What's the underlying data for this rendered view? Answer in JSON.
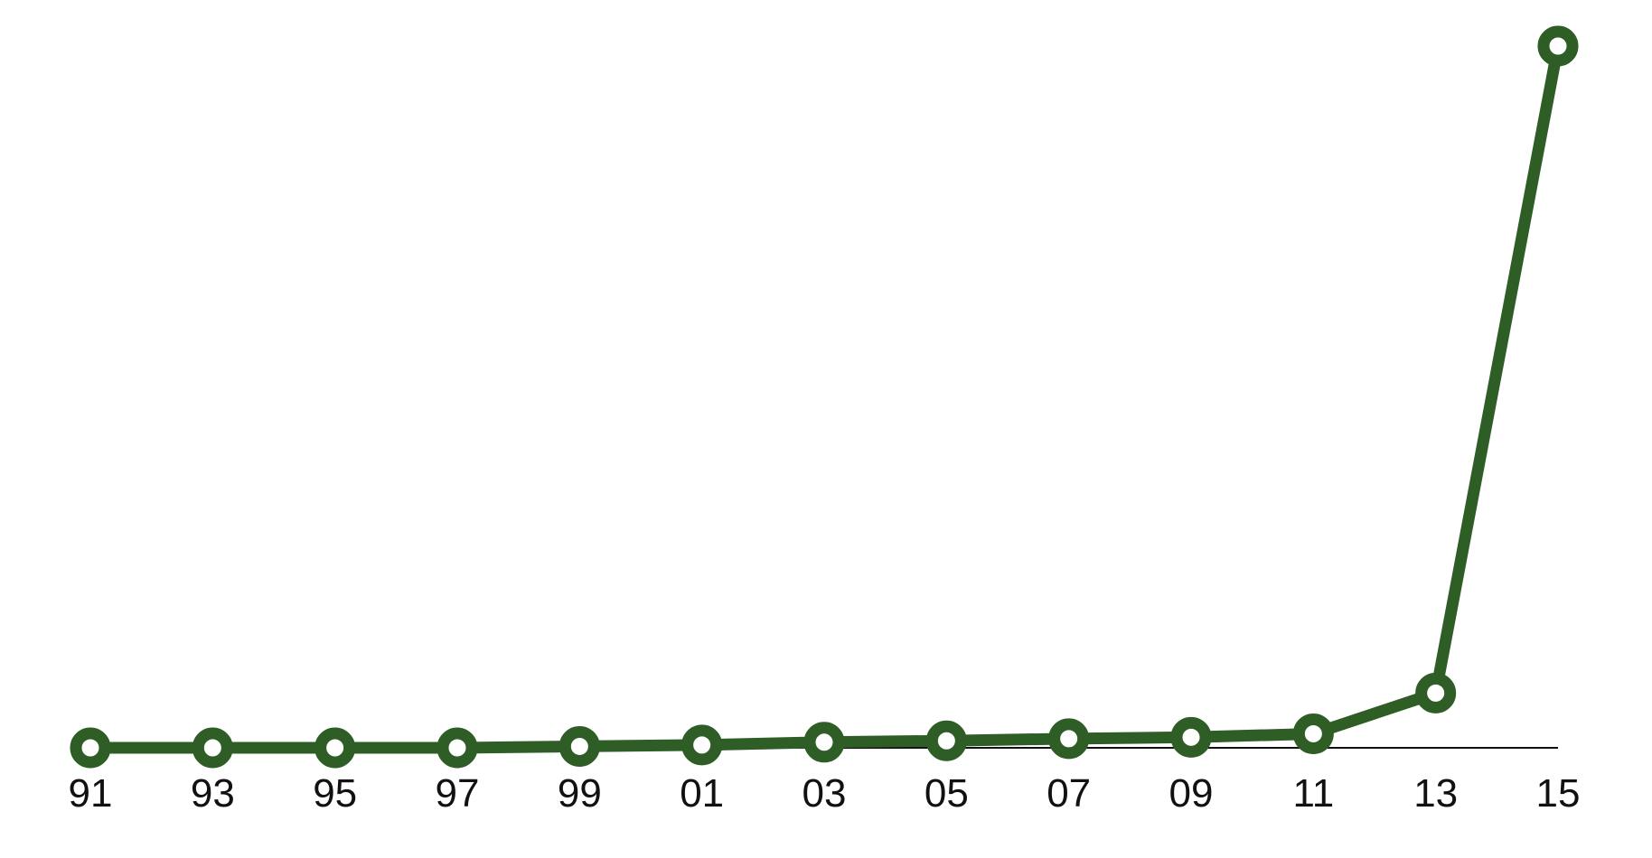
{
  "chart_data": {
    "type": "line",
    "title": "",
    "xlabel": "",
    "ylabel": "",
    "categories": [
      "91",
      "93",
      "95",
      "97",
      "99",
      "01",
      "03",
      "05",
      "07",
      "09",
      "11",
      "13",
      "15"
    ],
    "series": [
      {
        "values": [
          0.0,
          0.0,
          0.0,
          0.0,
          0.2,
          0.4,
          0.8,
          1.0,
          1.3,
          1.5,
          2.0,
          7.8,
          100.0
        ]
      }
    ],
    "ylim": [
      0,
      100
    ],
    "grid": false,
    "y_axis_visible": false,
    "legend": "none",
    "colors": {
      "line": "#2e5e26",
      "marker_fill": "#ffffff",
      "axis": "#111111",
      "tick_text": "#111111"
    }
  }
}
